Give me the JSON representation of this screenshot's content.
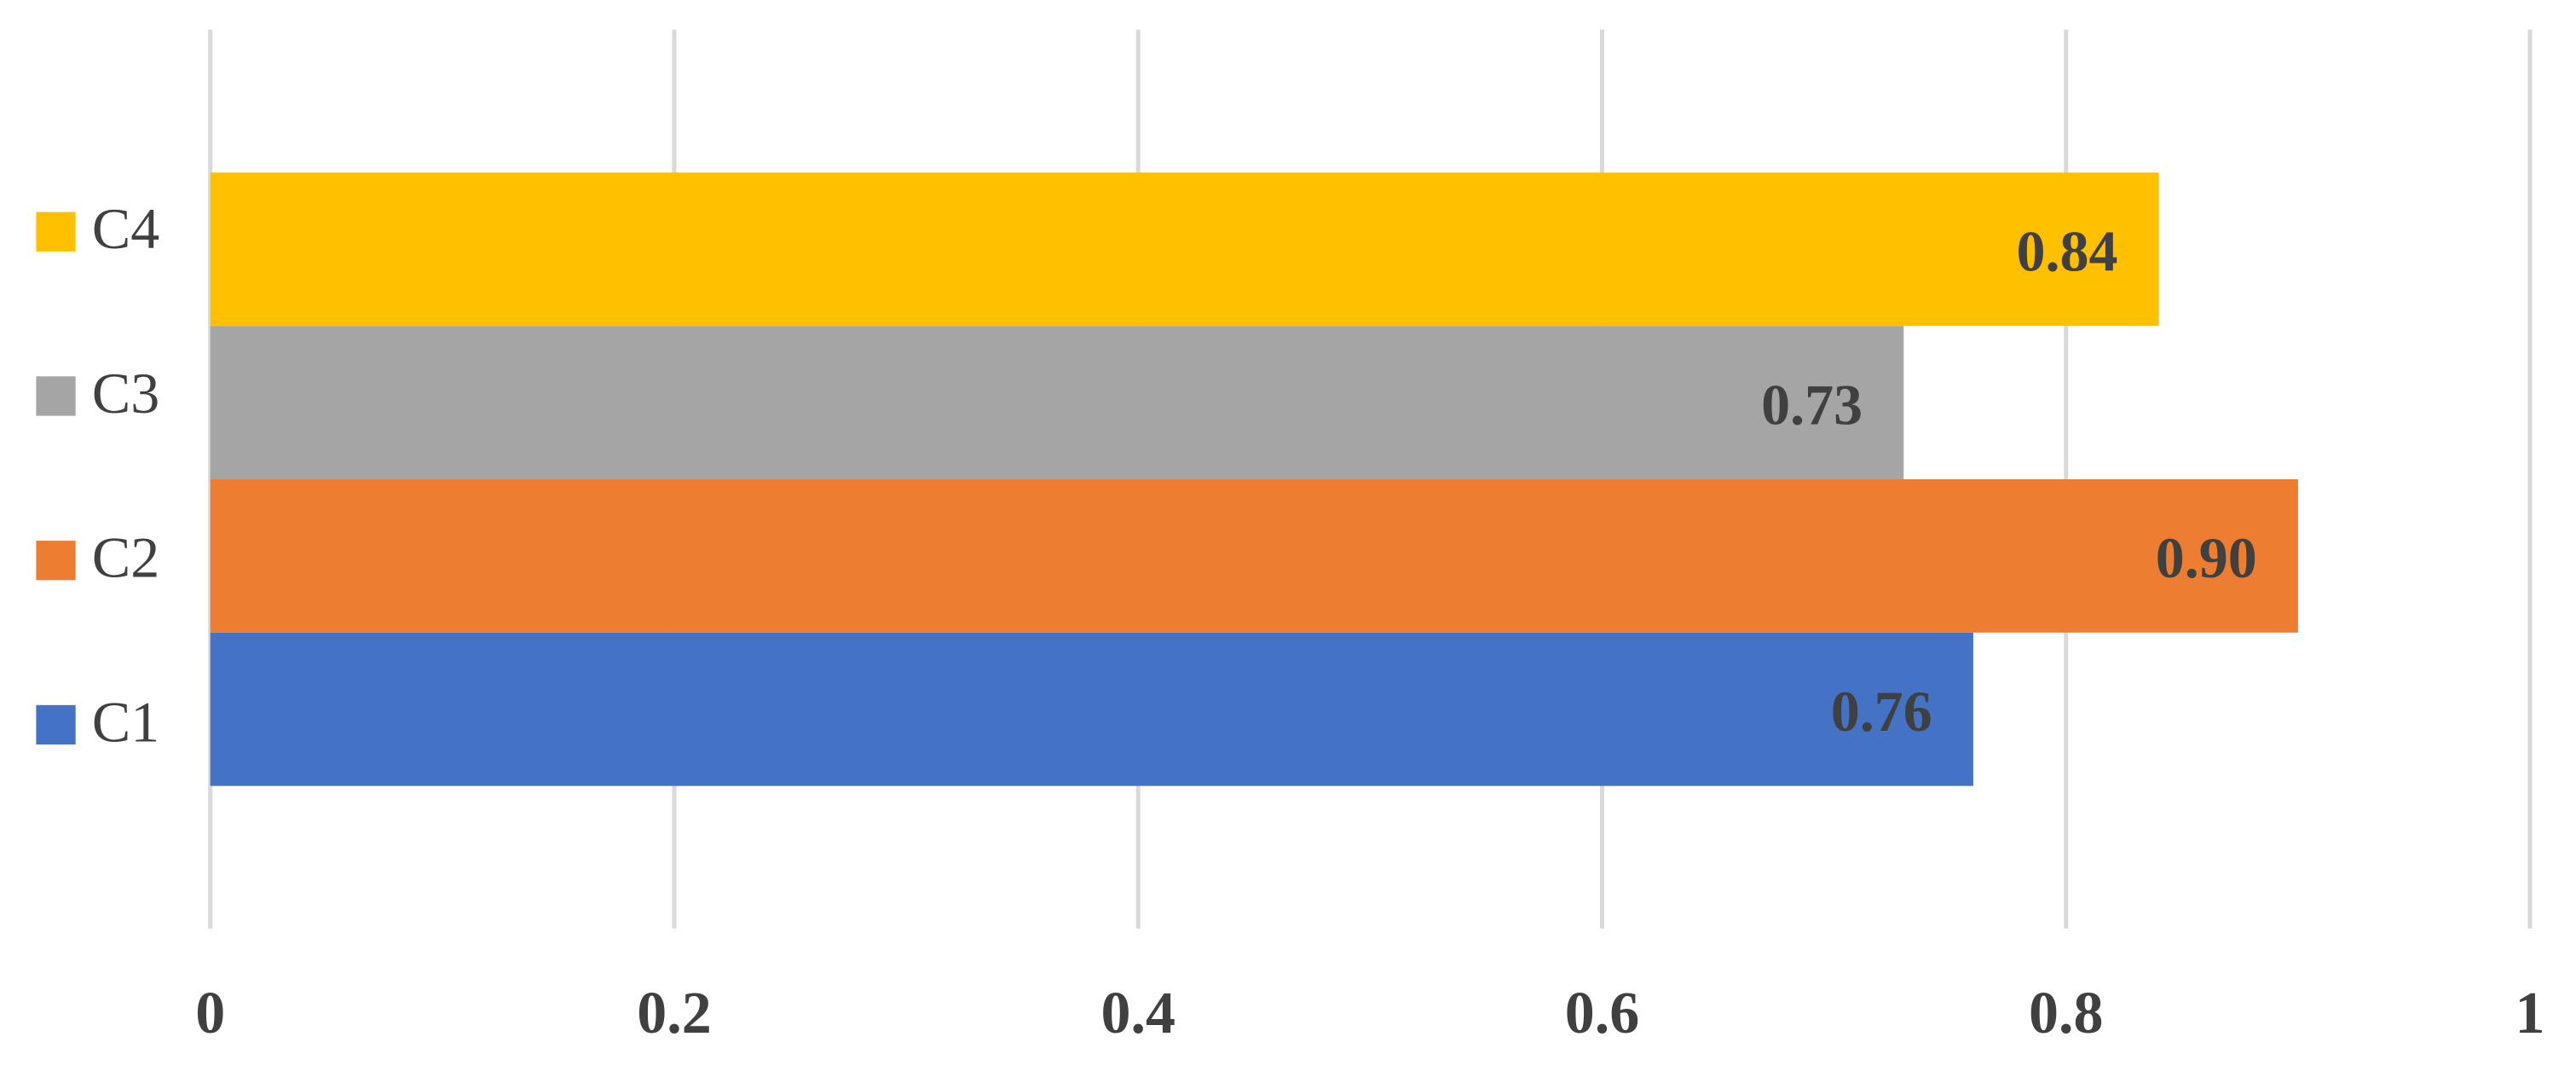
{
  "chart_data": {
    "type": "bar",
    "orientation": "horizontal",
    "categories": [
      null
    ],
    "series": [
      {
        "name": "C1",
        "color": "#4472c4",
        "values": [
          0.76
        ],
        "value_labels": [
          "0.76"
        ]
      },
      {
        "name": "C2",
        "color": "#ed7d31",
        "values": [
          0.9
        ],
        "value_labels": [
          "0.90"
        ]
      },
      {
        "name": "C3",
        "color": "#a5a5a5",
        "values": [
          0.73
        ],
        "value_labels": [
          "0.73"
        ]
      },
      {
        "name": "C4",
        "color": "#ffc000",
        "values": [
          0.84
        ],
        "value_labels": [
          "0.84"
        ]
      }
    ],
    "xlim": [
      0,
      1
    ],
    "xticks": [
      0,
      0.2,
      0.4,
      0.6,
      0.8,
      1
    ],
    "grid": true,
    "legend": "left"
  }
}
